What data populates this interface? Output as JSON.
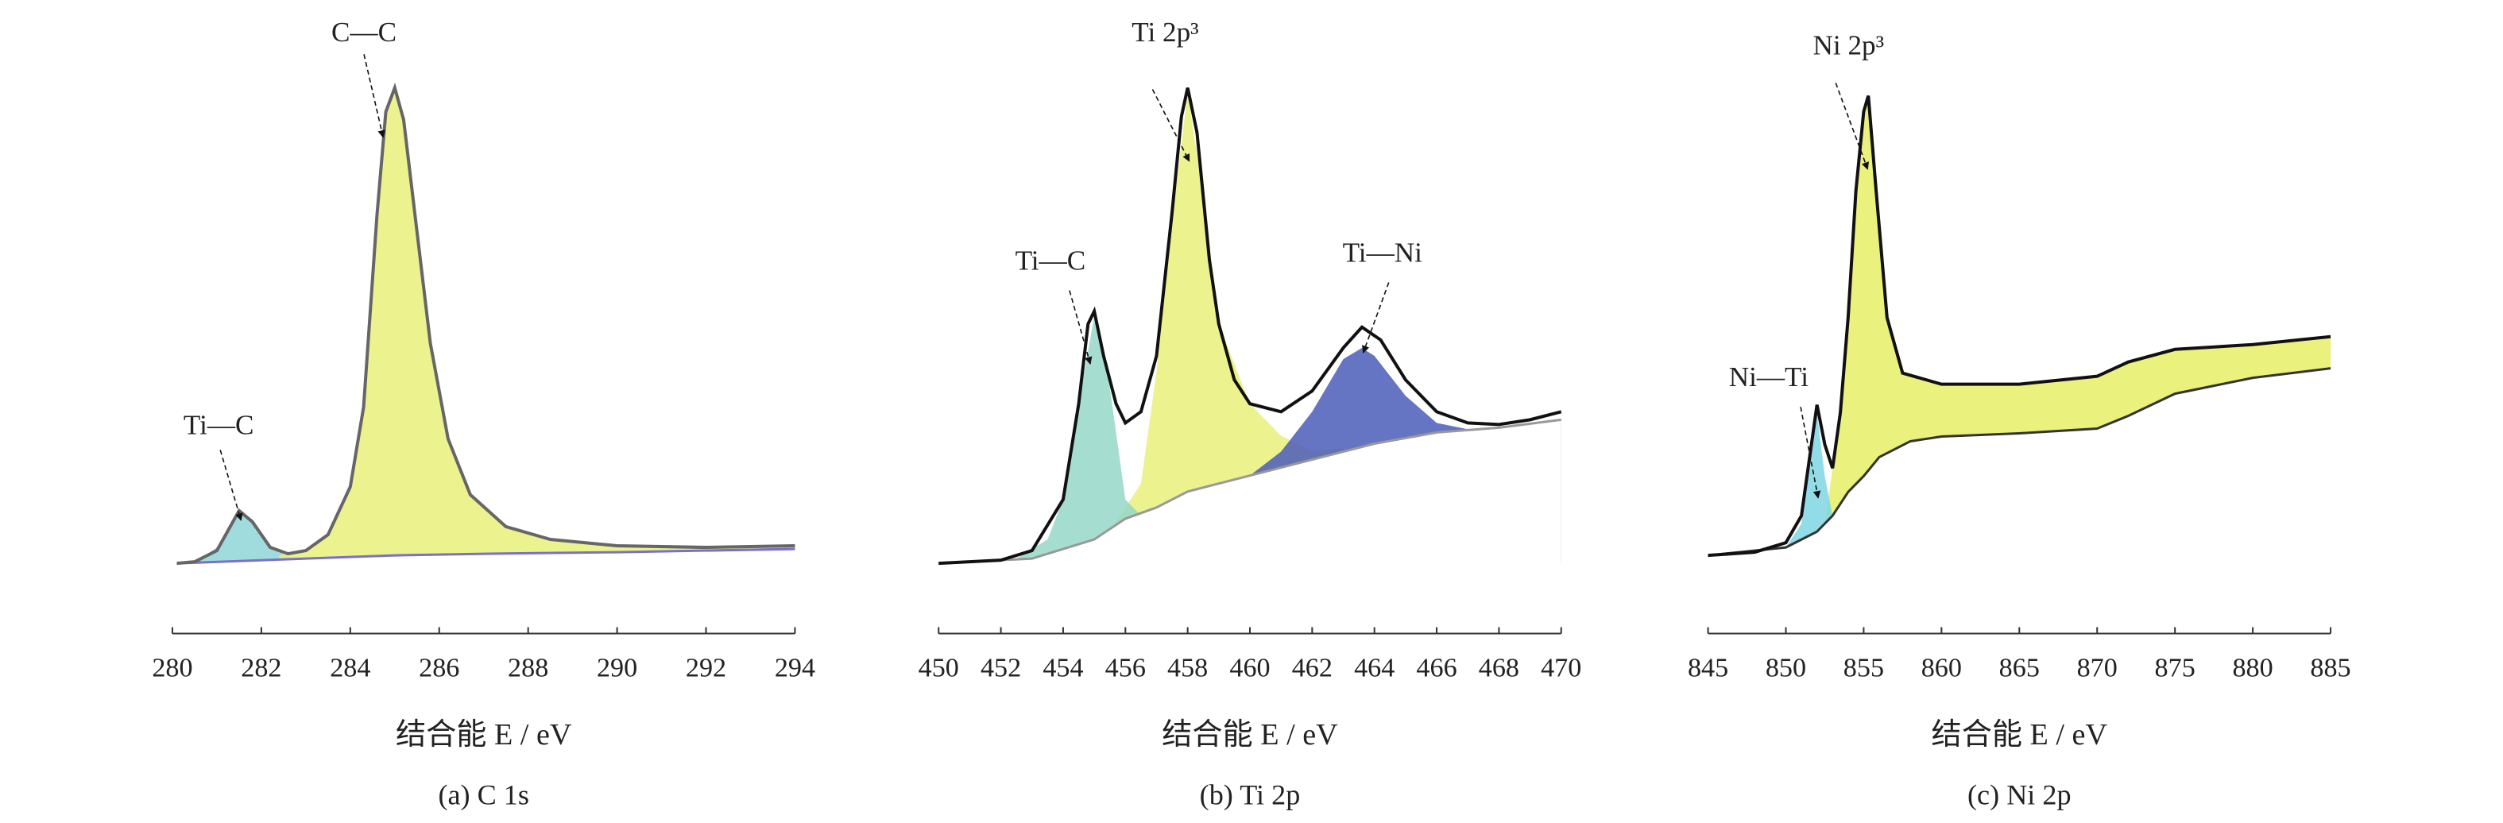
{
  "chart_data": [
    {
      "type": "area",
      "caption": "(a) C 1s",
      "x_label": "结合能 E / eV",
      "xlim": [
        280,
        294
      ],
      "xticks": [
        280,
        282,
        284,
        286,
        288,
        290,
        292,
        294
      ],
      "annotations": [
        "C—C",
        "Ti—C"
      ],
      "series": [
        {
          "style": "area",
          "color": "#8fd6d8",
          "x": [
            280.1,
            280.6,
            281,
            281.3,
            281.5,
            281.8,
            282.2,
            282.6,
            283
          ],
          "values": [
            2,
            4,
            12,
            27,
            35,
            27,
            12,
            6,
            5
          ]
        },
        {
          "style": "area",
          "color": "#e9f07a",
          "x": [
            282.4,
            283,
            283.5,
            284,
            284.3,
            284.6,
            284.8,
            285,
            285.2,
            285.5,
            285.8,
            286.2,
            286.7,
            287.5,
            288.5,
            290,
            292,
            294
          ],
          "values": [
            7,
            10,
            20,
            50,
            100,
            220,
            285,
            300,
            280,
            210,
            140,
            80,
            45,
            25,
            17,
            13,
            12,
            13
          ]
        },
        {
          "style": "background",
          "color": "#7a70c8",
          "x": [
            280.1,
            283,
            285,
            287,
            290,
            294
          ],
          "values": [
            2,
            5,
            7,
            8,
            9,
            11
          ]
        },
        {
          "style": "line",
          "color": "#666666",
          "x": [
            280.1,
            280.5,
            281,
            281.3,
            281.5,
            281.8,
            282.2,
            282.6,
            283,
            283.5,
            284,
            284.3,
            284.6,
            284.8,
            285,
            285.2,
            285.5,
            285.8,
            286.2,
            286.7,
            287.5,
            288.5,
            290,
            292,
            294
          ],
          "values": [
            2,
            3,
            10,
            25,
            35,
            28,
            12,
            8,
            10,
            20,
            50,
            100,
            220,
            285,
            300,
            280,
            210,
            140,
            80,
            45,
            25,
            17,
            13,
            12,
            13
          ]
        }
      ]
    },
    {
      "type": "area",
      "caption": "(b) Ti 2p",
      "x_label": "结合能 E / eV",
      "xlim": [
        450,
        470
      ],
      "xticks": [
        450,
        452,
        454,
        456,
        458,
        460,
        462,
        464,
        466,
        468,
        470
      ],
      "annotations": [
        "Ti 2p³",
        "Ti—C",
        "Ti—Ni"
      ],
      "series": [
        {
          "style": "area",
          "color": "#e9f07a",
          "x": [
            455.5,
            456.5,
            457,
            457.5,
            458,
            458.5,
            459,
            460,
            461,
            462,
            463
          ],
          "values": [
            20,
            50,
            120,
            215,
            295,
            230,
            150,
            100,
            80,
            70,
            72
          ]
        },
        {
          "style": "area",
          "color": "#95d8c8",
          "x": [
            450,
            452.5,
            453.5,
            454,
            454.5,
            455,
            455.5,
            456,
            456.5,
            457
          ],
          "values": [
            0,
            3,
            15,
            40,
            100,
            155,
            110,
            40,
            30,
            35
          ]
        },
        {
          "style": "area",
          "color": "#4a5cb8",
          "x": [
            460,
            461,
            462,
            463,
            463.6,
            464,
            465,
            466,
            467,
            468,
            470
          ],
          "values": [
            55,
            70,
            95,
            128,
            135,
            130,
            105,
            88,
            84,
            85,
            90
          ]
        },
        {
          "style": "background",
          "color": "#999999",
          "x": [
            450,
            453,
            455,
            456,
            457,
            458,
            460,
            462,
            464,
            466,
            468,
            470
          ],
          "values": [
            0,
            3,
            15,
            28,
            35,
            45,
            55,
            65,
            75,
            82,
            85,
            90
          ]
        },
        {
          "style": "line",
          "color": "#111111",
          "x": [
            450,
            452,
            453,
            454,
            454.5,
            454.8,
            455,
            455.3,
            455.7,
            456,
            456.5,
            457,
            457.5,
            457.8,
            458,
            458.3,
            458.7,
            459,
            459.5,
            460,
            461,
            462,
            463,
            463.6,
            464.2,
            465,
            466,
            467,
            468,
            469,
            470
          ],
          "values": [
            0,
            2,
            8,
            40,
            100,
            150,
            158,
            130,
            100,
            88,
            95,
            130,
            220,
            280,
            298,
            270,
            190,
            150,
            115,
            100,
            95,
            108,
            135,
            148,
            140,
            115,
            95,
            88,
            87,
            90,
            95
          ]
        }
      ]
    },
    {
      "type": "area",
      "caption": "(c) Ni 2p",
      "x_label": "结合能 E / eV",
      "xlim": [
        845,
        885
      ],
      "xticks": [
        845,
        850,
        855,
        860,
        865,
        870,
        875,
        880,
        885
      ],
      "annotations": [
        "Ni 2p³",
        "Ni—Ti"
      ],
      "series": [
        {
          "style": "area",
          "color": "#e6ef66",
          "x": [
            845,
            848,
            850,
            851,
            852,
            852.5,
            853,
            853.5,
            854,
            854.5,
            855,
            855.3,
            855.8,
            856.5,
            857.5,
            860,
            865,
            870,
            872,
            875,
            880,
            885
          ],
          "values": [
            0,
            2,
            6,
            10,
            15,
            20,
            55,
            90,
            150,
            230,
            280,
            290,
            230,
            150,
            115,
            108,
            108,
            113,
            122,
            130,
            133,
            138
          ]
        },
        {
          "style": "area",
          "color": "#7fd6e4",
          "x": [
            850,
            851,
            851.5,
            852,
            852.5,
            853
          ],
          "values": [
            5,
            20,
            55,
            90,
            50,
            25
          ]
        },
        {
          "style": "background",
          "color": "#333333",
          "x": [
            845,
            850,
            852,
            853,
            854,
            855,
            856,
            858,
            860,
            865,
            870,
            872,
            875,
            880,
            885
          ],
          "values": [
            0,
            5,
            15,
            25,
            40,
            50,
            62,
            72,
            75,
            77,
            80,
            88,
            102,
            112,
            118
          ]
        },
        {
          "style": "line",
          "color": "#111111",
          "x": [
            845,
            848,
            850,
            851,
            851.5,
            852,
            852.5,
            853,
            853.5,
            854,
            854.5,
            855,
            855.3,
            855.8,
            856.5,
            857.5,
            860,
            865,
            870,
            872,
            875,
            880,
            885
          ],
          "values": [
            0,
            2,
            8,
            25,
            60,
            95,
            70,
            55,
            90,
            150,
            230,
            280,
            290,
            230,
            150,
            115,
            108,
            108,
            113,
            122,
            130,
            133,
            138
          ]
        }
      ]
    }
  ]
}
